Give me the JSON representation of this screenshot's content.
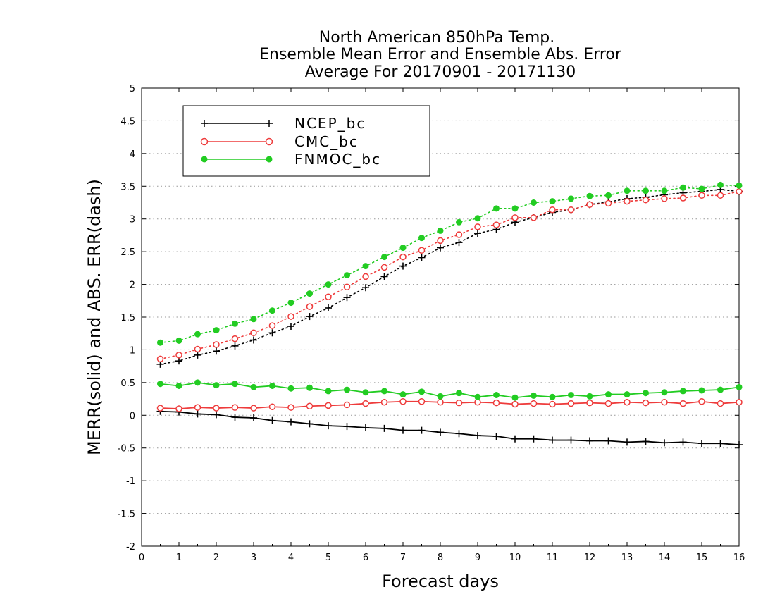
{
  "chart_data": {
    "type": "line",
    "title_lines": [
      "North American 850hPa Temp.",
      "Ensemble Mean Error and Ensemble Abs. Error",
      "Average For 20170901 - 20171130"
    ],
    "xlabel": "Forecast days",
    "ylabel": "MERR(solid) and ABS. ERR(dash)",
    "xlim": [
      0,
      16
    ],
    "ylim": [
      -2,
      5
    ],
    "xticks": [
      0,
      1,
      2,
      3,
      4,
      5,
      6,
      7,
      8,
      9,
      10,
      11,
      12,
      13,
      14,
      15,
      16
    ],
    "yticks": [
      -2,
      -1.5,
      -1,
      -0.5,
      0,
      0.5,
      1,
      1.5,
      2,
      2.5,
      3,
      3.5,
      4,
      4.5,
      5
    ],
    "ytick_labels": [
      "-2",
      "-1.5",
      "-1",
      "-0.5",
      "0",
      "0.5",
      "1",
      "1.5",
      "2",
      "2.5",
      "3",
      "3.5",
      "4",
      "4.5",
      "5"
    ],
    "grid": "horizontal dotted",
    "legend_position": "top-left",
    "x": [
      0.5,
      1,
      1.5,
      2,
      2.5,
      3,
      3.5,
      4,
      4.5,
      5,
      5.5,
      6,
      6.5,
      7,
      7.5,
      8,
      8.5,
      9,
      9.5,
      10,
      10.5,
      11,
      11.5,
      12,
      12.5,
      13,
      13.5,
      14,
      14.5,
      15,
      15.5,
      16
    ],
    "series": [
      {
        "name": "NCEP_bc",
        "color": "#000000",
        "marker": "plus",
        "merr": [
          0.06,
          0.05,
          0.02,
          0.01,
          -0.03,
          -0.04,
          -0.08,
          -0.1,
          -0.13,
          -0.16,
          -0.17,
          -0.19,
          -0.2,
          -0.23,
          -0.23,
          -0.26,
          -0.28,
          -0.31,
          -0.32,
          -0.36,
          -0.36,
          -0.38,
          -0.38,
          -0.39,
          -0.39,
          -0.41,
          -0.4,
          -0.42,
          -0.41,
          -0.43,
          -0.43,
          -0.45
        ],
        "abs_err": [
          0.78,
          0.83,
          0.92,
          0.98,
          1.06,
          1.15,
          1.26,
          1.36,
          1.51,
          1.64,
          1.8,
          1.95,
          2.12,
          2.28,
          2.41,
          2.56,
          2.64,
          2.78,
          2.84,
          2.95,
          3.02,
          3.1,
          3.14,
          3.22,
          3.26,
          3.31,
          3.33,
          3.37,
          3.4,
          3.42,
          3.45,
          3.42
        ]
      },
      {
        "name": "CMC_bc",
        "color": "#ee3b3b",
        "marker": "open-circle",
        "merr": [
          0.11,
          0.1,
          0.12,
          0.11,
          0.12,
          0.11,
          0.13,
          0.12,
          0.14,
          0.15,
          0.16,
          0.18,
          0.2,
          0.21,
          0.21,
          0.2,
          0.19,
          0.2,
          0.19,
          0.17,
          0.18,
          0.17,
          0.18,
          0.19,
          0.18,
          0.2,
          0.19,
          0.2,
          0.18,
          0.21,
          0.18,
          0.2
        ],
        "abs_err": [
          0.86,
          0.92,
          1.01,
          1.08,
          1.17,
          1.26,
          1.37,
          1.51,
          1.66,
          1.81,
          1.96,
          2.12,
          2.26,
          2.42,
          2.52,
          2.67,
          2.76,
          2.88,
          2.91,
          3.02,
          3.02,
          3.14,
          3.14,
          3.22,
          3.24,
          3.27,
          3.29,
          3.31,
          3.32,
          3.36,
          3.36,
          3.42
        ]
      },
      {
        "name": "FNMOC_bc",
        "color": "#22cc22",
        "marker": "filled-circle",
        "merr": [
          0.48,
          0.45,
          0.5,
          0.46,
          0.48,
          0.43,
          0.45,
          0.41,
          0.42,
          0.37,
          0.39,
          0.35,
          0.37,
          0.32,
          0.36,
          0.29,
          0.34,
          0.28,
          0.31,
          0.27,
          0.3,
          0.28,
          0.31,
          0.29,
          0.32,
          0.32,
          0.34,
          0.35,
          0.37,
          0.38,
          0.39,
          0.43
        ],
        "abs_err": [
          1.11,
          1.14,
          1.24,
          1.3,
          1.4,
          1.47,
          1.6,
          1.72,
          1.86,
          2.0,
          2.14,
          2.28,
          2.42,
          2.56,
          2.71,
          2.82,
          2.95,
          3.01,
          3.16,
          3.16,
          3.25,
          3.27,
          3.31,
          3.35,
          3.36,
          3.43,
          3.43,
          3.43,
          3.48,
          3.46,
          3.52,
          3.51
        ]
      }
    ]
  }
}
